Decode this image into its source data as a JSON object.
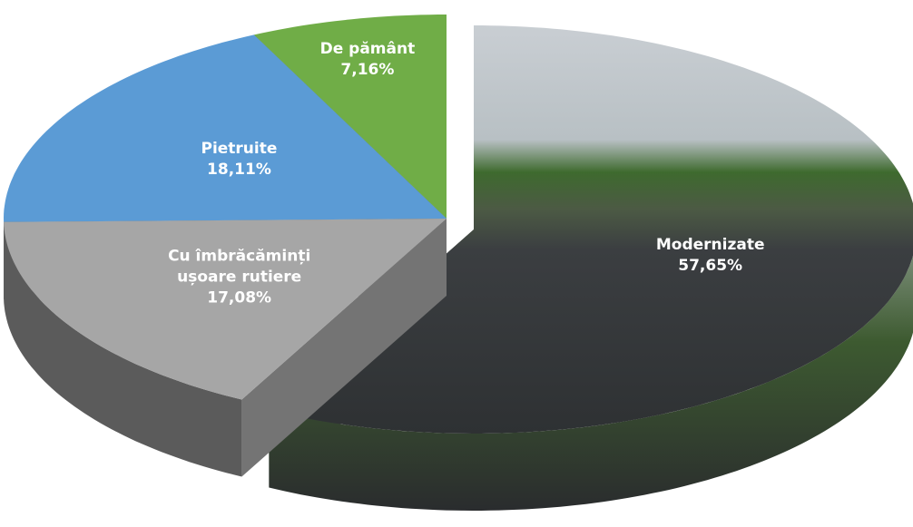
{
  "chart_data": {
    "type": "pie",
    "categories": [
      "Modernizate",
      "Cu îmbrăcăminți ușoare rutiere",
      "Pietruite",
      "De pământ"
    ],
    "values": [
      57.65,
      17.08,
      18.11,
      7.16
    ],
    "value_labels": [
      "57,65%",
      "17,08%",
      "18,11%",
      "7,16%"
    ],
    "colors": [
      "#4a5a4a",
      "#a6a6a6",
      "#5b9bd5",
      "#70ad47"
    ]
  }
}
